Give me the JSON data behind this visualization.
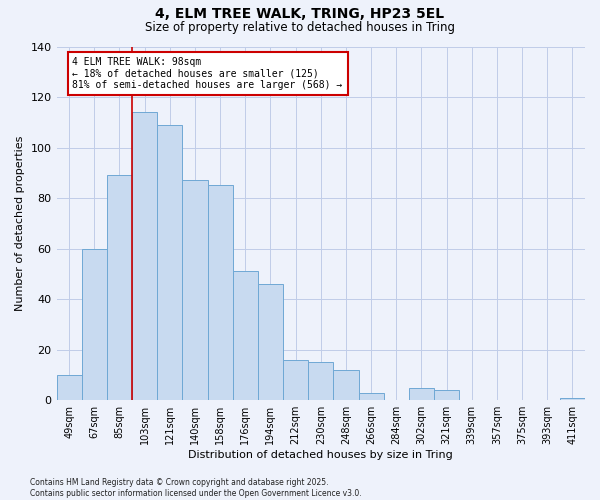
{
  "title": "4, ELM TREE WALK, TRING, HP23 5EL",
  "subtitle": "Size of property relative to detached houses in Tring",
  "xlabel": "Distribution of detached houses by size in Tring",
  "ylabel": "Number of detached properties",
  "bar_labels": [
    "49sqm",
    "67sqm",
    "85sqm",
    "103sqm",
    "121sqm",
    "140sqm",
    "158sqm",
    "176sqm",
    "194sqm",
    "212sqm",
    "230sqm",
    "248sqm",
    "266sqm",
    "284sqm",
    "302sqm",
    "321sqm",
    "339sqm",
    "357sqm",
    "375sqm",
    "393sqm",
    "411sqm"
  ],
  "bar_values": [
    10,
    60,
    89,
    114,
    109,
    87,
    85,
    51,
    46,
    16,
    15,
    12,
    3,
    0,
    5,
    4,
    0,
    0,
    0,
    0,
    1
  ],
  "bar_color": "#c8daf0",
  "bar_edge_color": "#6fa8d4",
  "vline_x_index": 2.5,
  "vline_color": "#cc0000",
  "annotation_text": "4 ELM TREE WALK: 98sqm\n← 18% of detached houses are smaller (125)\n81% of semi-detached houses are larger (568) →",
  "annotation_box_facecolor": "#ffffff",
  "annotation_box_edgecolor": "#cc0000",
  "ylim": [
    0,
    140
  ],
  "yticks": [
    0,
    20,
    40,
    60,
    80,
    100,
    120,
    140
  ],
  "footer_line1": "Contains HM Land Registry data © Crown copyright and database right 2025.",
  "footer_line2": "Contains public sector information licensed under the Open Government Licence v3.0.",
  "bg_color": "#eef2fb",
  "grid_color": "#c0cce8",
  "title_fontsize": 10,
  "subtitle_fontsize": 8.5,
  "axis_label_fontsize": 8,
  "tick_fontsize": 7,
  "footer_fontsize": 5.5
}
